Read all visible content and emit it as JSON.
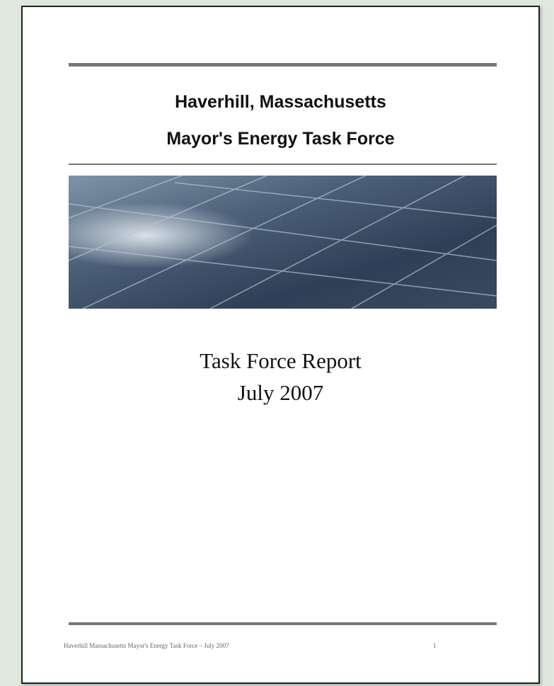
{
  "header": {
    "line1": "Haverhill, Massachusetts",
    "line2": "Mayor's Energy Task Force"
  },
  "report": {
    "title": "Task Force Report",
    "date": "July 2007"
  },
  "footer": {
    "text": "Haverhill Massachusetts Mayor's Energy Task Force – July 2007",
    "page": 1
  }
}
